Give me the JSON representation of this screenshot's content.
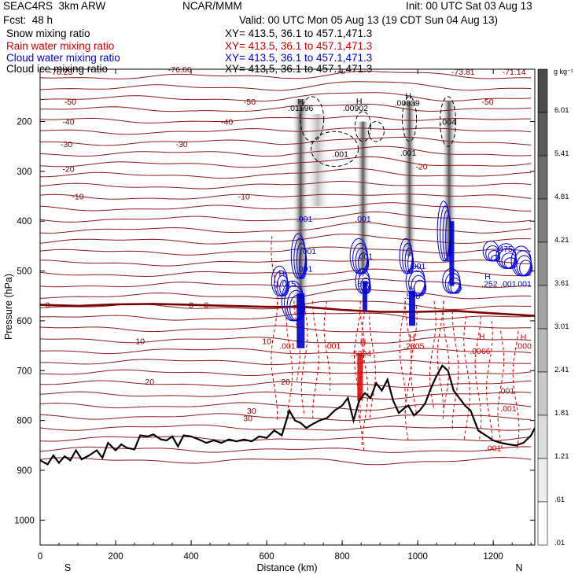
{
  "header": {
    "model": "SEAC4RS  3km ARW",
    "institution": "NCAR/MMM",
    "init": "Init: 00 UTC Sat 03 Aug 13",
    "forecast": "Fcst:  48 h",
    "valid": "Valid: 00 UTC Mon 05 Aug 13 (19 CDT Sun 04 Aug 13)",
    "fields": [
      {
        "name": "Snow mixing ratio",
        "xy": "XY= 413.5, 36.1 to 457.1,471.3",
        "color": "#000000"
      },
      {
        "name": "Rain water mixing ratio",
        "xy": "XY= 413.5, 36.1 to 457.1,471.3",
        "color": "#cc0000"
      },
      {
        "name": "Cloud water mixing ratio",
        "xy": "XY= 413.5, 36.1 to 457.1,471.3",
        "color": "#0000cc"
      },
      {
        "name": "Cloud ice mixing ratio",
        "xy": "XY= 413.5, 36.1 to 457.1,471.3",
        "color": "#000000"
      }
    ]
  },
  "chart_data": {
    "type": "cross-section",
    "xlabel": "Distance (km)",
    "ylabel": "Pressure (hPa)",
    "xlim": [
      0,
      1310
    ],
    "ylim": [
      1050,
      100
    ],
    "xticks": [
      0,
      200,
      400,
      600,
      800,
      1000,
      1200
    ],
    "yticks": [
      200,
      300,
      400,
      500,
      600,
      700,
      800,
      900,
      1000
    ],
    "ends": {
      "left": "S",
      "right": "N"
    },
    "colorbar": {
      "unit": "g kg⁻¹",
      "labels": [
        "6.01",
        "5.41",
        "4.81",
        "4.21",
        "3.61",
        "3.01",
        "2.41",
        "1.81",
        "1.21",
        ".61",
        ".01"
      ],
      "colors": [
        "#4a4a4a",
        "#5a5a5a",
        "#6b6b6b",
        "#7d7d7d",
        "#909090",
        "#a3a3a3",
        "#b6b6b6",
        "#c9c9c9",
        "#dcdcdc",
        "#ededed",
        "#ffffff"
      ]
    },
    "temperature_labels": [
      "-76.23",
      "-76.66",
      "-73.81",
      "-71.14",
      "-50",
      "-50",
      "-50",
      "-40",
      "-40",
      "-30",
      "-30",
      "-20",
      "-20",
      "-10",
      "-10",
      "0",
      "0",
      "0",
      "10",
      "10",
      "20",
      "20",
      "30",
      "30"
    ],
    "snow_labels": [
      "H",
      ".01596",
      "H",
      ".00902",
      "H",
      ".00839",
      ".004",
      ".001",
      ".001"
    ],
    "cloud_water_labels": [
      ".001",
      ".001",
      ".001",
      ".001",
      ".001",
      ".001",
      ".475",
      "H",
      "1.015",
      "H",
      ".656",
      "H",
      ".578",
      "H",
      ".252",
      ".001",
      ".001"
    ],
    "rain_labels": [
      ".001",
      ".001",
      ".5394",
      ".2805",
      ".0066",
      "H",
      ".000",
      ".001",
      ".001",
      ".001",
      "H",
      "H",
      "H"
    ],
    "terrain": [
      [
        0,
        880
      ],
      [
        20,
        888
      ],
      [
        35,
        870
      ],
      [
        50,
        885
      ],
      [
        65,
        872
      ],
      [
        80,
        880
      ],
      [
        95,
        860
      ],
      [
        110,
        878
      ],
      [
        130,
        870
      ],
      [
        150,
        860
      ],
      [
        165,
        875
      ],
      [
        180,
        845
      ],
      [
        200,
        860
      ],
      [
        215,
        848
      ],
      [
        230,
        855
      ],
      [
        250,
        858
      ],
      [
        265,
        830
      ],
      [
        285,
        832
      ],
      [
        300,
        828
      ],
      [
        320,
        838
      ],
      [
        335,
        840
      ],
      [
        350,
        832
      ],
      [
        365,
        852
      ],
      [
        380,
        830
      ],
      [
        400,
        832
      ],
      [
        420,
        838
      ],
      [
        440,
        845
      ],
      [
        460,
        840
      ],
      [
        480,
        845
      ],
      [
        500,
        838
      ],
      [
        520,
        842
      ],
      [
        540,
        838
      ],
      [
        560,
        842
      ],
      [
        580,
        832
      ],
      [
        600,
        835
      ],
      [
        620,
        820
      ],
      [
        640,
        830
      ],
      [
        660,
        780
      ],
      [
        675,
        800
      ],
      [
        690,
        805
      ],
      [
        705,
        815
      ],
      [
        720,
        808
      ],
      [
        740,
        800
      ],
      [
        760,
        795
      ],
      [
        780,
        780
      ],
      [
        800,
        770
      ],
      [
        815,
        755
      ],
      [
        830,
        800
      ],
      [
        845,
        760
      ],
      [
        860,
        745
      ],
      [
        875,
        755
      ],
      [
        890,
        725
      ],
      [
        905,
        740
      ],
      [
        920,
        718
      ],
      [
        935,
        760
      ],
      [
        950,
        785
      ],
      [
        965,
        775
      ],
      [
        975,
        770
      ],
      [
        990,
        790
      ],
      [
        1005,
        780
      ],
      [
        1020,
        765
      ],
      [
        1035,
        735
      ],
      [
        1050,
        710
      ],
      [
        1065,
        690
      ],
      [
        1080,
        700
      ],
      [
        1095,
        740
      ],
      [
        1110,
        755
      ],
      [
        1125,
        770
      ],
      [
        1140,
        780
      ],
      [
        1160,
        820
      ],
      [
        1180,
        830
      ],
      [
        1200,
        840
      ],
      [
        1220,
        845
      ],
      [
        1240,
        848
      ],
      [
        1260,
        850
      ],
      [
        1280,
        845
      ],
      [
        1300,
        830
      ],
      [
        1310,
        815
      ]
    ],
    "freezing_level": [
      [
        0,
        568
      ],
      [
        100,
        570
      ],
      [
        200,
        567
      ],
      [
        300,
        566
      ],
      [
        400,
        568
      ],
      [
        500,
        570
      ],
      [
        600,
        572
      ],
      [
        700,
        572
      ],
      [
        800,
        578
      ],
      [
        900,
        582
      ],
      [
        1000,
        582
      ],
      [
        1100,
        580
      ],
      [
        1200,
        585
      ],
      [
        1310,
        590
      ]
    ]
  }
}
